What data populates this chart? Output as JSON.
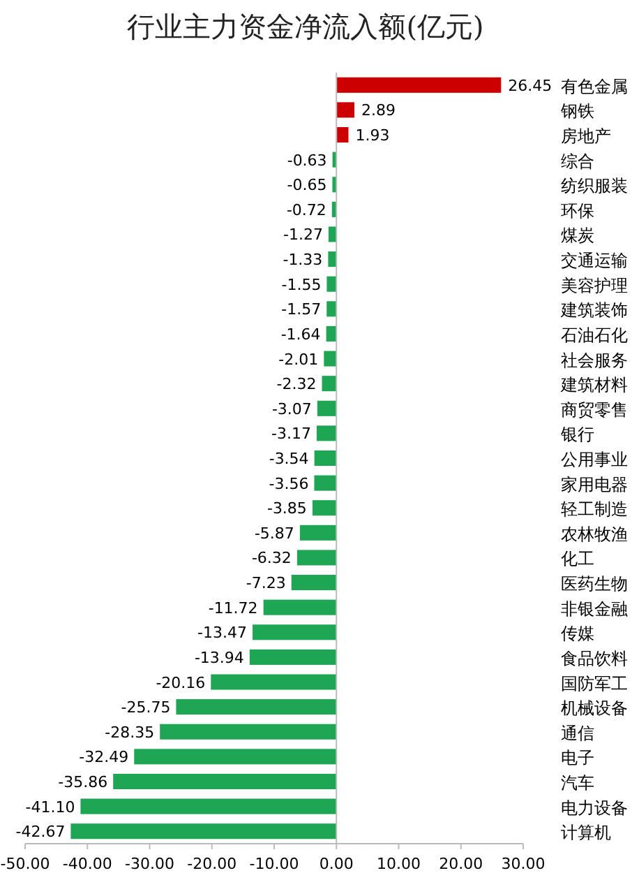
{
  "chart_data": {
    "type": "bar",
    "orientation": "horizontal",
    "title": "行业主力资金净流入额(亿元)",
    "categories": [
      "有色金属",
      "钢铁",
      "房地产",
      "综合",
      "纺织服装",
      "环保",
      "煤炭",
      "交通运输",
      "美容护理",
      "建筑装饰",
      "石油石化",
      "社会服务",
      "建筑材料",
      "商贸零售",
      "银行",
      "公用事业",
      "家用电器",
      "轻工制造",
      "农林牧渔",
      "化工",
      "医药生物",
      "非银金融",
      "传媒",
      "食品饮料",
      "国防军工",
      "机械设备",
      "通信",
      "电子",
      "汽车",
      "电力设备",
      "计算机"
    ],
    "values": [
      26.45,
      2.89,
      1.93,
      -0.63,
      -0.65,
      -0.72,
      -1.27,
      -1.33,
      -1.55,
      -1.57,
      -1.64,
      -2.01,
      -2.32,
      -3.07,
      -3.17,
      -3.54,
      -3.56,
      -3.85,
      -5.87,
      -6.32,
      -7.23,
      -11.72,
      -13.47,
      -13.94,
      -20.16,
      -25.75,
      -28.35,
      -32.49,
      -35.86,
      -41.1,
      -42.67
    ],
    "value_labels": [
      "26.45",
      "2.89",
      "1.93",
      "-0.63",
      "-0.65",
      "-0.72",
      "-1.27",
      "-1.33",
      "-1.55",
      "-1.57",
      "-1.64",
      "-2.01",
      "-2.32",
      "-3.07",
      "-3.17",
      "-3.54",
      "-3.56",
      "-3.85",
      "-5.87",
      "-6.32",
      "-7.23",
      "-11.72",
      "-13.47",
      "-13.94",
      "-20.16",
      "-25.75",
      "-28.35",
      "-32.49",
      "-35.86",
      "-41.10",
      "-42.67"
    ],
    "colors": [
      "#cc0000",
      "#cc0000",
      "#cc0000",
      "#1fa654",
      "#1fa654",
      "#1fa654",
      "#1fa654",
      "#1fa654",
      "#1fa654",
      "#1fa654",
      "#1fa654",
      "#1fa654",
      "#1fa654",
      "#1fa654",
      "#1fa654",
      "#1fa654",
      "#1fa654",
      "#1fa654",
      "#1fa654",
      "#1fa654",
      "#1fa654",
      "#1fa654",
      "#1fa654",
      "#1fa654",
      "#1fa654",
      "#1fa654",
      "#1fa654",
      "#1fa654",
      "#1fa654",
      "#1fa654",
      "#1fa654"
    ],
    "xlim": [
      -50,
      30
    ],
    "xticks": [
      {
        "value": -50,
        "label": "-50.00"
      },
      {
        "value": -40,
        "label": "-40.00"
      },
      {
        "value": -30,
        "label": "-30.00"
      },
      {
        "value": -20,
        "label": "-20.00"
      },
      {
        "value": -10,
        "label": "-10.00"
      },
      {
        "value": 0,
        "label": "0.00"
      },
      {
        "value": 10,
        "label": "10.00"
      },
      {
        "value": 20,
        "label": "20.00"
      },
      {
        "value": 30,
        "label": "30.00"
      }
    ]
  }
}
